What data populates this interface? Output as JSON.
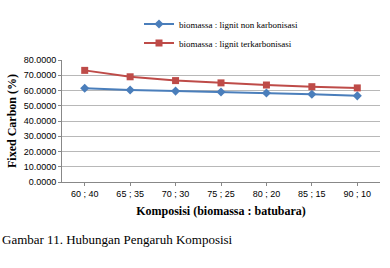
{
  "chart_data": {
    "type": "line",
    "x_label": "Komposisi (biomassa : batubara)",
    "y_label": "Fixed Carbon (%)",
    "categories": [
      "60 ; 40",
      "65 ; 35",
      "70 ; 30",
      "75 ; 25",
      "80 ; 20",
      "85 ; 15",
      "90 ; 10"
    ],
    "series": [
      {
        "name": "biomassa : lignit non karbonisasi",
        "color": "#4a7ebb",
        "marker": "diamond",
        "line_style": "solid",
        "values": [
          61.5,
          60.3,
          59.6,
          59.0,
          58.4,
          57.5,
          56.5
        ]
      },
      {
        "name": "biomassa : lignit terkarbonisasi",
        "color": "#be4b48",
        "marker": "square",
        "line_style": "solid",
        "values": [
          73.2,
          69.0,
          66.5,
          65.0,
          63.6,
          62.5,
          61.7
        ]
      }
    ],
    "ylim": [
      0,
      80
    ],
    "yticks": [
      {
        "value": 0,
        "label": "0.0000"
      },
      {
        "value": 10,
        "label": "10.0000"
      },
      {
        "value": 20,
        "label": "20.0000"
      },
      {
        "value": 30,
        "label": "30.0000"
      },
      {
        "value": 40,
        "label": "40.0000"
      },
      {
        "value": 50,
        "label": "50.0000"
      },
      {
        "value": 60,
        "label": "60.0000"
      },
      {
        "value": 70,
        "label": "70.0000"
      },
      {
        "value": 80,
        "label": "80.0000"
      }
    ],
    "grid": true,
    "legend": "top",
    "annotations": [
      {
        "text": "Gambar 11.  Hubungan Pengaruh Komposisi"
      }
    ]
  }
}
